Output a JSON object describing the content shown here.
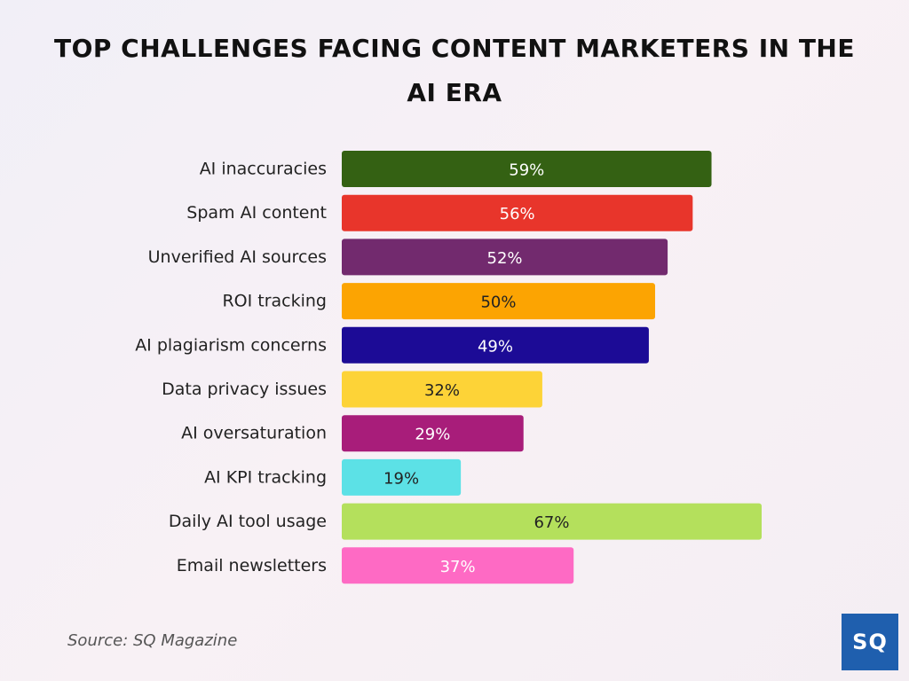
{
  "chart_data": {
    "type": "bar",
    "orientation": "horizontal",
    "title": "TOP CHALLENGES FACING CONTENT MARKETERS IN THE AI ERA",
    "categories": [
      "AI inaccuracies",
      "Spam AI content",
      "Unverified AI sources",
      "ROI tracking",
      "AI plagiarism concerns",
      "Data privacy issues",
      "AI oversaturation",
      "AI KPI tracking",
      "Daily AI tool usage",
      "Email newsletters"
    ],
    "values": [
      59,
      56,
      52,
      50,
      49,
      32,
      29,
      19,
      67,
      37
    ],
    "value_labels": [
      "59%",
      "56%",
      "52%",
      "50%",
      "49%",
      "32%",
      "29%",
      "19%",
      "67%",
      "37%"
    ],
    "colors": [
      "#346113",
      "#e8352b",
      "#722a6e",
      "#fca402",
      "#1c0b96",
      "#fdd337",
      "#a81d7a",
      "#5ce1e6",
      "#b4e05c",
      "#fe6ac4"
    ],
    "label_colors": [
      "#ffffff",
      "#ffffff",
      "#ffffff",
      "#222222",
      "#ffffff",
      "#222222",
      "#ffffff",
      "#222222",
      "#222222",
      "#ffffff"
    ],
    "xlim": [
      0,
      67
    ],
    "grid": false,
    "xlabel": "",
    "ylabel": ""
  },
  "source": "Source: SQ Magazine",
  "logo": {
    "text": "SQ",
    "color": "#1f5fae"
  }
}
